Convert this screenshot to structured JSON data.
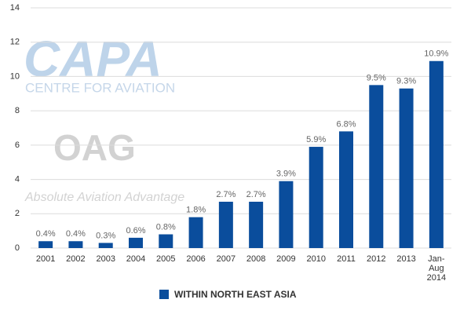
{
  "chart_data": {
    "type": "bar",
    "categories": [
      "2001",
      "2002",
      "2003",
      "2004",
      "2005",
      "2006",
      "2007",
      "2008",
      "2009",
      "2010",
      "2011",
      "2012",
      "2013",
      "Jan-Aug 2014"
    ],
    "series": [
      {
        "name": "WITHIN NORTH EAST ASIA",
        "color": "#0a4d9c",
        "values": [
          0.4,
          0.4,
          0.3,
          0.6,
          0.8,
          1.8,
          2.7,
          2.7,
          3.9,
          5.9,
          6.8,
          9.5,
          9.3,
          10.9
        ],
        "value_labels": [
          "0.4%",
          "0.4%",
          "0.3%",
          "0.6%",
          "0.8%",
          "1.8%",
          "2.7%",
          "2.7%",
          "3.9%",
          "5.9%",
          "6.8%",
          "9.5%",
          "9.3%",
          "10.9%"
        ]
      }
    ],
    "ylim": [
      0,
      14
    ],
    "yticks": [
      0,
      2,
      4,
      6,
      8,
      10,
      12,
      14
    ],
    "grid": true,
    "legend": "bottom",
    "watermarks": [
      "CAPA",
      "CENTRE FOR AVIATION",
      "OAG",
      "Absolute Aviation Advantage"
    ]
  }
}
